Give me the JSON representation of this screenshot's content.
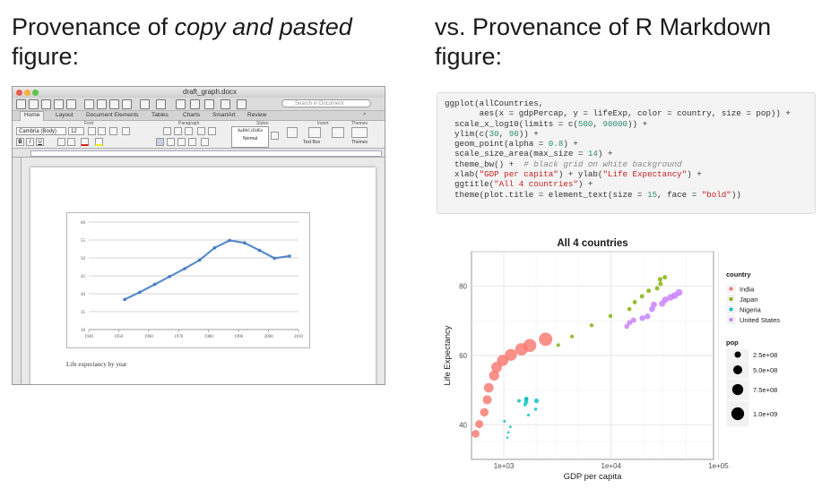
{
  "headings": {
    "left_prefix": "Provenance of ",
    "left_em": "copy and pasted",
    "left_suffix": " figure:",
    "right": "vs. Provenance of R Markdown figure:"
  },
  "word": {
    "doc_title": "draft_graph.docx",
    "search_placeholder": "Search in Document",
    "tabs": [
      "Home",
      "Layout",
      "Document Elements",
      "Tables",
      "Charts",
      "SmartArt",
      "Review"
    ],
    "groups": [
      "Font",
      "Paragraph",
      "Styles",
      "Insert",
      "Themes"
    ],
    "font_name": "Cambria (Body)",
    "font_size": "12",
    "style_sample": "AaBbCcDdEe",
    "style_name": "Normal",
    "text_box": "Text Box",
    "themes": "Themes",
    "caption": "Life expectancy by year",
    "colors": {
      "line": "#5b8ccc",
      "marker": "#4a7cc0"
    }
  },
  "code": {
    "lines": [
      [
        [
          "ggplot(allCountries,",
          "kw"
        ]
      ],
      [
        [
          "       aes(x = gdpPercap, y = lifeExp, color = country, size = pop)) +",
          "kw"
        ]
      ],
      [
        [
          "  scale_x_log10(limits = c(",
          "kw"
        ],
        [
          "500",
          "num"
        ],
        [
          ", ",
          "kw"
        ],
        [
          "90000",
          "num"
        ],
        [
          ")) +",
          "kw"
        ]
      ],
      [
        [
          "  ylim(c(",
          "kw"
        ],
        [
          "30",
          "num"
        ],
        [
          ", ",
          "kw"
        ],
        [
          "90",
          "num"
        ],
        [
          ")) +",
          "kw"
        ]
      ],
      [
        [
          "  geom_point(alpha = ",
          "kw"
        ],
        [
          "0.8",
          "num"
        ],
        [
          ") +",
          "kw"
        ]
      ],
      [
        [
          "  scale_size_area(max_size = ",
          "kw"
        ],
        [
          "14",
          "num"
        ],
        [
          ") +",
          "kw"
        ]
      ],
      [
        [
          "  theme_bw() +  ",
          "kw"
        ],
        [
          "# black grid on white background",
          "cmt"
        ]
      ],
      [
        [
          "  xlab(",
          "kw"
        ],
        [
          "\"GDP per capita\"",
          "str"
        ],
        [
          ") + ylab(",
          "kw"
        ],
        [
          "\"Life Expectancy\"",
          "str"
        ],
        [
          ") +",
          "kw"
        ]
      ],
      [
        [
          "  ggtitle(",
          "kw"
        ],
        [
          "\"All 4 countries\"",
          "str"
        ],
        [
          ") +",
          "kw"
        ]
      ],
      [
        [
          "  theme(plot.title = element_text(size = ",
          "kw"
        ],
        [
          "15",
          "num"
        ],
        [
          ", face = ",
          "kw"
        ],
        [
          "\"bold\"",
          "str"
        ],
        [
          "))",
          "kw"
        ]
      ]
    ]
  },
  "chart_data": [
    {
      "type": "line",
      "x": [
        1952,
        1957,
        1962,
        1967,
        1972,
        1977,
        1982,
        1987,
        1992,
        1997,
        2002,
        2007
      ],
      "series": [
        {
          "values": [
            38.4,
            40.4,
            42.6,
            44.8,
            47.0,
            49.4,
            52.8,
            54.9,
            54.2,
            52.1,
            49.9,
            50.5
          ]
        }
      ],
      "xticks": [
        1940,
        1950,
        1960,
        1970,
        1980,
        1990,
        2000,
        2010
      ],
      "yticks": [
        30,
        35,
        40,
        45,
        50,
        55,
        60
      ],
      "xlim": [
        1940,
        2010
      ],
      "ylim": [
        30,
        60
      ],
      "grid": true
    },
    {
      "type": "scatter",
      "title": "All 4 countries",
      "xlabel": "GDP per capita",
      "ylabel": "Life Expectancy",
      "xscale": "log",
      "xlim": [
        500,
        90000
      ],
      "ylim": [
        30,
        90
      ],
      "xtick_labels": [
        "1e+03",
        "1e+04",
        "1e+05"
      ],
      "xtick_values": [
        1000,
        10000,
        100000
      ],
      "ytick_labels": [
        "40",
        "60",
        "80"
      ],
      "ytick_values": [
        40,
        60,
        80
      ],
      "legend_placement": "right",
      "grid": true,
      "color_legend": {
        "title": "country",
        "entries": [
          {
            "name": "India",
            "color": "#f8766d"
          },
          {
            "name": "Japan",
            "color": "#7cae00"
          },
          {
            "name": "Nigeria",
            "color": "#00bfc4"
          },
          {
            "name": "United States",
            "color": "#c77cff"
          }
        ]
      },
      "size_legend": {
        "title": "pop",
        "entries": [
          {
            "label": "2.5e+08",
            "value": 250000000
          },
          {
            "label": "5.0e+08",
            "value": 500000000
          },
          {
            "label": "7.5e+08",
            "value": 750000000
          },
          {
            "label": "1.0e+09",
            "value": 1000000000
          }
        ]
      },
      "series": [
        {
          "name": "India",
          "color": "#f8766d",
          "points": [
            {
              "x": 546,
              "y": 37.4,
              "pop": 372000000
            },
            {
              "x": 590,
              "y": 40.2,
              "pop": 409000000
            },
            {
              "x": 658,
              "y": 43.6,
              "pop": 454000000
            },
            {
              "x": 700,
              "y": 47.2,
              "pop": 506000000
            },
            {
              "x": 724,
              "y": 50.7,
              "pop": 567000000
            },
            {
              "x": 813,
              "y": 54.2,
              "pop": 634000000
            },
            {
              "x": 856,
              "y": 56.6,
              "pop": 708000000
            },
            {
              "x": 977,
              "y": 58.6,
              "pop": 788000000
            },
            {
              "x": 1164,
              "y": 60.2,
              "pop": 872000000
            },
            {
              "x": 1459,
              "y": 61.8,
              "pop": 959000000
            },
            {
              "x": 1747,
              "y": 62.9,
              "pop": 1034000000
            },
            {
              "x": 2452,
              "y": 64.7,
              "pop": 1110000000
            }
          ]
        },
        {
          "name": "Japan",
          "color": "#7cae00",
          "points": [
            {
              "x": 3217,
              "y": 63.0,
              "pop": 86400000
            },
            {
              "x": 4318,
              "y": 65.5,
              "pop": 91600000
            },
            {
              "x": 6577,
              "y": 68.7,
              "pop": 95800000
            },
            {
              "x": 9848,
              "y": 71.4,
              "pop": 100800000
            },
            {
              "x": 14779,
              "y": 73.4,
              "pop": 107200000
            },
            {
              "x": 16610,
              "y": 75.4,
              "pop": 113900000
            },
            {
              "x": 19384,
              "y": 77.1,
              "pop": 118500000
            },
            {
              "x": 22376,
              "y": 78.7,
              "pop": 122100000
            },
            {
              "x": 26825,
              "y": 79.4,
              "pop": 124300000
            },
            {
              "x": 28817,
              "y": 80.7,
              "pop": 125600000
            },
            {
              "x": 28605,
              "y": 82.0,
              "pop": 127100000
            },
            {
              "x": 31656,
              "y": 82.6,
              "pop": 127500000
            }
          ]
        },
        {
          "name": "Nigeria",
          "color": "#00bfc4",
          "points": [
            {
              "x": 1077,
              "y": 36.3,
              "pop": 33100000
            },
            {
              "x": 1101,
              "y": 37.8,
              "pop": 37200000
            },
            {
              "x": 1151,
              "y": 39.4,
              "pop": 41900000
            },
            {
              "x": 1015,
              "y": 41.0,
              "pop": 47300000
            },
            {
              "x": 1698,
              "y": 42.8,
              "pop": 53700000
            },
            {
              "x": 1982,
              "y": 44.5,
              "pop": 62200000
            },
            {
              "x": 1577,
              "y": 45.8,
              "pop": 73000000
            },
            {
              "x": 1385,
              "y": 46.9,
              "pop": 81600000
            },
            {
              "x": 1619,
              "y": 47.5,
              "pop": 93400000
            },
            {
              "x": 1625,
              "y": 47.5,
              "pop": 106200000
            },
            {
              "x": 1615,
              "y": 46.6,
              "pop": 119900000
            },
            {
              "x": 2014,
              "y": 46.9,
              "pop": 135000000
            }
          ]
        },
        {
          "name": "United States",
          "color": "#c77cff",
          "points": [
            {
              "x": 13990,
              "y": 68.4,
              "pop": 157600000
            },
            {
              "x": 14847,
              "y": 69.5,
              "pop": 171900000
            },
            {
              "x": 16173,
              "y": 70.2,
              "pop": 186500000
            },
            {
              "x": 19530,
              "y": 70.8,
              "pop": 198700000
            },
            {
              "x": 21806,
              "y": 71.3,
              "pop": 209900000
            },
            {
              "x": 24073,
              "y": 73.4,
              "pop": 220200000
            },
            {
              "x": 25010,
              "y": 74.7,
              "pop": 232200000
            },
            {
              "x": 29884,
              "y": 75.0,
              "pop": 242800000
            },
            {
              "x": 32004,
              "y": 76.1,
              "pop": 256900000
            },
            {
              "x": 35767,
              "y": 76.8,
              "pop": 272900000
            },
            {
              "x": 39097,
              "y": 77.3,
              "pop": 287700000
            },
            {
              "x": 42952,
              "y": 78.2,
              "pop": 301100000
            }
          ]
        }
      ]
    }
  ]
}
